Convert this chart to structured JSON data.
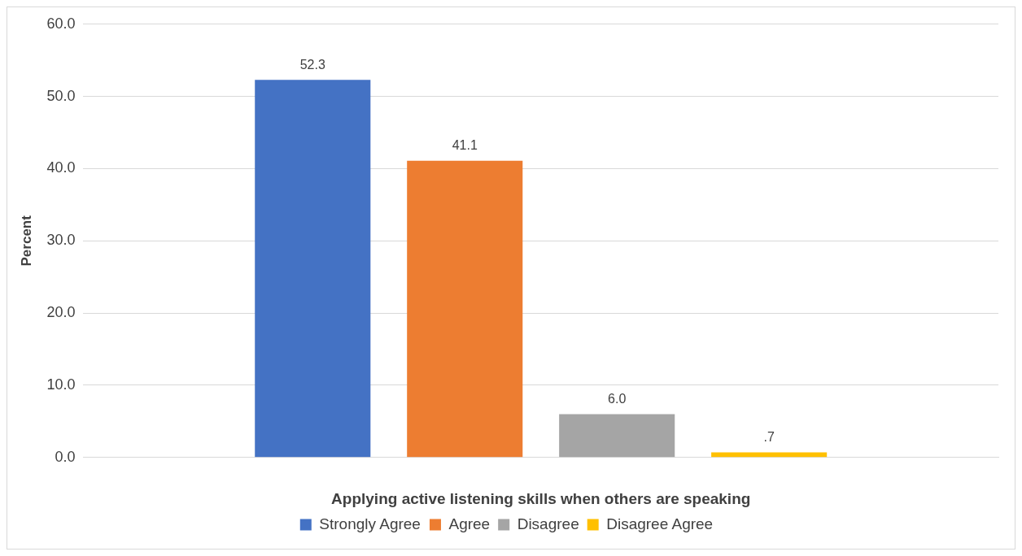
{
  "chart_data": {
    "type": "bar",
    "xlabel": "Applying active listening skills when others are speaking",
    "ylabel": "Percent",
    "categories": [
      null
    ],
    "series": [
      {
        "name": "Strongly Agree",
        "color": "#4472c4",
        "values": [
          52.3
        ],
        "value_labels": [
          "52.3"
        ]
      },
      {
        "name": "Agree",
        "color": "#ed7d31",
        "values": [
          41.1
        ],
        "value_labels": [
          "41.1"
        ]
      },
      {
        "name": "Disagree",
        "color": "#a5a5a5",
        "values": [
          6.0
        ],
        "value_labels": [
          "6.0"
        ]
      },
      {
        "name": "Disagree Agree",
        "color": "#ffc000",
        "values": [
          0.7
        ],
        "value_labels": [
          ".7"
        ]
      }
    ],
    "ylim": [
      0,
      60
    ],
    "yticks": [
      {
        "value": 0,
        "label": "0.0"
      },
      {
        "value": 10,
        "label": "10.0"
      },
      {
        "value": 20,
        "label": "20.0"
      },
      {
        "value": 30,
        "label": "30.0"
      },
      {
        "value": 40,
        "label": "40.0"
      },
      {
        "value": 50,
        "label": "50.0"
      },
      {
        "value": 60,
        "label": "60.0"
      }
    ],
    "grid": "y",
    "legend": "bottom"
  }
}
